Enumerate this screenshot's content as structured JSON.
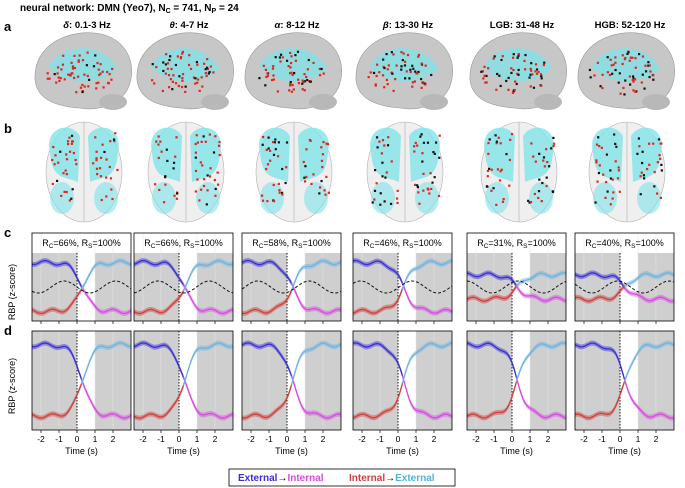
{
  "title": {
    "prefix": "neural network: DMN (Yeo7), N",
    "nc_sub": "C",
    "nc_eq": " = 741, N",
    "np_sub": "P",
    "np_eq": " = 24"
  },
  "panel_letters": [
    "a",
    "b",
    "c",
    "d"
  ],
  "bands": [
    {
      "greek": "δ",
      "range": ": 0.1-3 Hz"
    },
    {
      "greek": "θ",
      "range": ": 4-7 Hz"
    },
    {
      "greek": "α",
      "range": ": 8-12 Hz"
    },
    {
      "greek": "β",
      "range": ": 13-30 Hz"
    },
    {
      "greek": "",
      "range": "LGB: 31-48 Hz"
    },
    {
      "greek": "",
      "range": "HGB: 52-120 Hz"
    }
  ],
  "rc_labels": [
    {
      "rc": "66%",
      "rs": "100%"
    },
    {
      "rc": "66%",
      "rs": "100%"
    },
    {
      "rc": "58%",
      "rs": "100%"
    },
    {
      "rc": "46%",
      "rs": "100%"
    },
    {
      "rc": "31%",
      "rs": "100%"
    },
    {
      "rc": "40%",
      "rs": "100%"
    }
  ],
  "ylabel": "RBP (z-score)",
  "xlabel": "Time (s)",
  "x_ticks": [
    "-2",
    "-1",
    "0",
    "1",
    "2"
  ],
  "legend": {
    "external_label": "External",
    "internal_label": "Internal",
    "arrow": "→",
    "internal_label2": "Internal",
    "external_label2": "External"
  },
  "colors": {
    "external": "#3a2fd6",
    "internal_magenta": "#d84be3",
    "internal_red": "#d0403d",
    "external_cyan": "#6fb3e0",
    "brain": "#c7c7c7",
    "network": "#7fe3e8",
    "shade": "#cfcfcf"
  },
  "chart_data": [
    {
      "type": "line",
      "title": "Panel c",
      "xlabel": "Time (s)",
      "ylabel": "RBP (z-score)",
      "xlim": [
        -2.5,
        3
      ],
      "series": [
        {
          "name": "External→Internal",
          "colors": [
            "external",
            "internal_magenta"
          ]
        },
        {
          "name": "Internal→External",
          "colors": [
            "internal_red",
            "external_cyan"
          ]
        }
      ]
    },
    {
      "type": "line",
      "title": "Panel d",
      "xlabel": "Time (s)",
      "ylabel": "RBP (z-score)",
      "xlim": [
        -2.5,
        3
      ],
      "series": [
        {
          "name": "External→Internal",
          "colors": [
            "external",
            "internal_magenta"
          ]
        },
        {
          "name": "Internal→External",
          "colors": [
            "internal_red",
            "external_cyan"
          ]
        }
      ]
    }
  ]
}
